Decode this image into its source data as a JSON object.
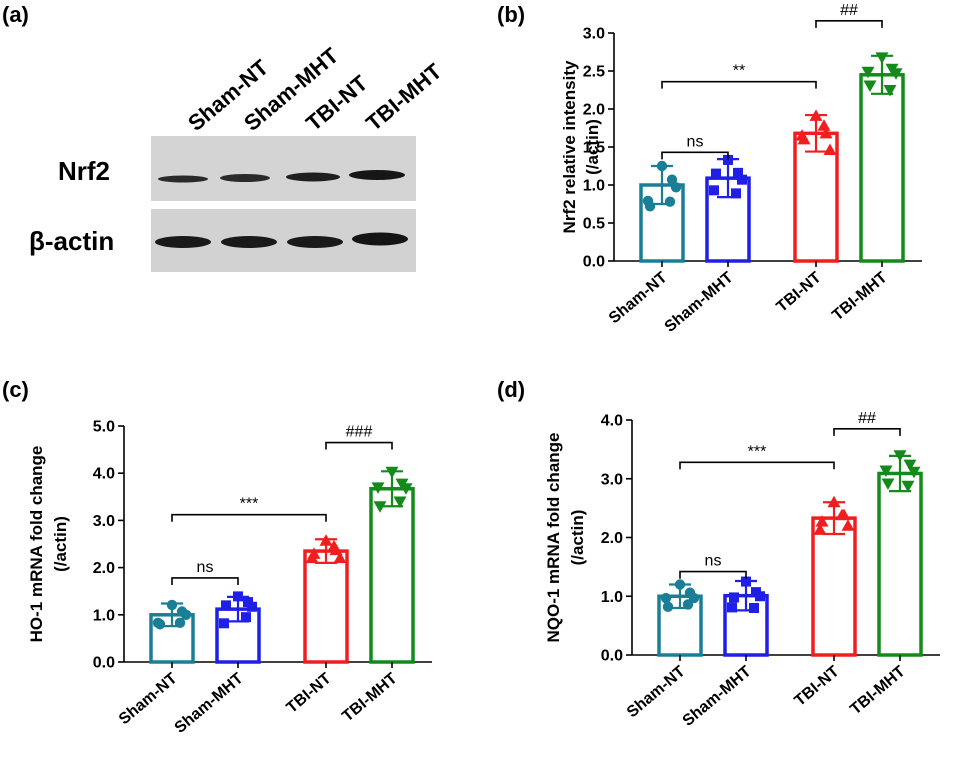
{
  "panel_labels": [
    "(a)",
    "(b)",
    "(c)",
    "(d)"
  ],
  "blot": {
    "lanes": [
      "Sham-NT",
      "Sham-MHT",
      "TBI-NT",
      "TBI-MHT"
    ],
    "rows": [
      "Nrf2",
      "β-actin"
    ]
  },
  "colors": {
    "Sham-NT": "#1a7f96",
    "Sham-MHT": "#1f1fe6",
    "TBI-NT": "#f01e1e",
    "TBI-MHT": "#138a1a"
  },
  "chart_data": [
    {
      "panel": "(b)",
      "type": "bar",
      "categories": [
        "Sham-NT",
        "Sham-MHT",
        "TBI-NT",
        "TBI-MHT"
      ],
      "values": [
        1.0,
        1.09,
        1.68,
        2.45
      ],
      "errors": [
        0.25,
        0.25,
        0.24,
        0.25
      ],
      "points": [
        [
          1.25,
          1.07,
          0.97,
          0.78,
          0.72,
          0.79
        ],
        [
          1.33,
          1.16,
          1.07,
          0.89,
          1.15,
          0.93
        ],
        [
          1.91,
          1.68,
          1.46,
          1.78,
          1.6,
          1.65
        ],
        [
          2.68,
          2.53,
          2.47,
          2.25,
          2.31,
          2.49
        ]
      ],
      "markers": [
        "circle",
        "square",
        "triangle-up",
        "triangle-down"
      ],
      "ylabel_lines": [
        "Nrf2 relative intensity",
        "(/actin)"
      ],
      "yticks": [
        "0.0",
        "0.5",
        "1.0",
        "1.5",
        "2.0",
        "2.5",
        "3.0"
      ],
      "ylim": [
        0,
        3.0
      ],
      "annotations": [
        {
          "from": "Sham-NT",
          "to": "Sham-MHT",
          "text": "ns",
          "y": 1.43
        },
        {
          "from": "Sham-NT",
          "to": "TBI-NT",
          "text": "**",
          "y": 2.36
        },
        {
          "from": "TBI-NT",
          "to": "TBI-MHT",
          "text": "##",
          "y": 3.16
        }
      ]
    },
    {
      "panel": "(c)",
      "type": "bar",
      "categories": [
        "Sham-NT",
        "Sham-MHT",
        "TBI-NT",
        "TBI-MHT"
      ],
      "values": [
        1.0,
        1.12,
        2.35,
        3.67
      ],
      "errors": [
        0.24,
        0.26,
        0.25,
        0.37
      ],
      "points": [
        [
          1.21,
          1.07,
          1.0,
          0.83,
          0.8,
          0.83
        ],
        [
          1.39,
          1.27,
          1.17,
          0.95,
          1.2,
          0.82
        ],
        [
          2.57,
          2.37,
          2.2,
          2.45,
          2.29,
          2.2
        ],
        [
          4.03,
          3.78,
          3.68,
          3.4,
          3.3,
          3.7
        ]
      ],
      "markers": [
        "circle",
        "square",
        "triangle-up",
        "triangle-down"
      ],
      "ylabel_lines": [
        "HO-1 mRNA fold change",
        "(/actin)"
      ],
      "yticks": [
        "0.0",
        "1.0",
        "2.0",
        "3.0",
        "4.0",
        "5.0"
      ],
      "ylim": [
        0,
        5.0
      ],
      "annotations": [
        {
          "from": "Sham-NT",
          "to": "Sham-MHT",
          "text": "ns",
          "y": 1.78
        },
        {
          "from": "Sham-NT",
          "to": "TBI-NT",
          "text": "***",
          "y": 3.12
        },
        {
          "from": "TBI-NT",
          "to": "TBI-MHT",
          "text": "###",
          "y": 4.65
        }
      ]
    },
    {
      "panel": "(d)",
      "type": "bar",
      "categories": [
        "Sham-NT",
        "Sham-MHT",
        "TBI-NT",
        "TBI-MHT"
      ],
      "values": [
        1.0,
        1.01,
        2.33,
        3.09
      ],
      "errors": [
        0.2,
        0.25,
        0.27,
        0.3
      ],
      "points": [
        [
          1.2,
          1.06,
          0.97,
          0.86,
          0.82,
          0.97
        ],
        [
          1.25,
          1.07,
          1.0,
          0.8,
          0.98,
          0.81
        ],
        [
          2.6,
          2.38,
          2.2,
          2.38,
          2.27,
          2.13
        ],
        [
          3.4,
          3.24,
          3.12,
          2.88,
          2.92,
          3.14
        ]
      ],
      "markers": [
        "circle",
        "square",
        "triangle-up",
        "triangle-down"
      ],
      "ylabel_lines": [
        "NQO-1 mRNA fold change",
        "(/actin)"
      ],
      "yticks": [
        "0.0",
        "1.0",
        "2.0",
        "3.0",
        "4.0"
      ],
      "ylim": [
        0,
        4.0
      ],
      "annotations": [
        {
          "from": "Sham-NT",
          "to": "Sham-MHT",
          "text": "ns",
          "y": 1.42
        },
        {
          "from": "Sham-NT",
          "to": "TBI-NT",
          "text": "***",
          "y": 3.28
        },
        {
          "from": "TBI-NT",
          "to": "TBI-MHT",
          "text": "##",
          "y": 3.85
        }
      ]
    }
  ]
}
